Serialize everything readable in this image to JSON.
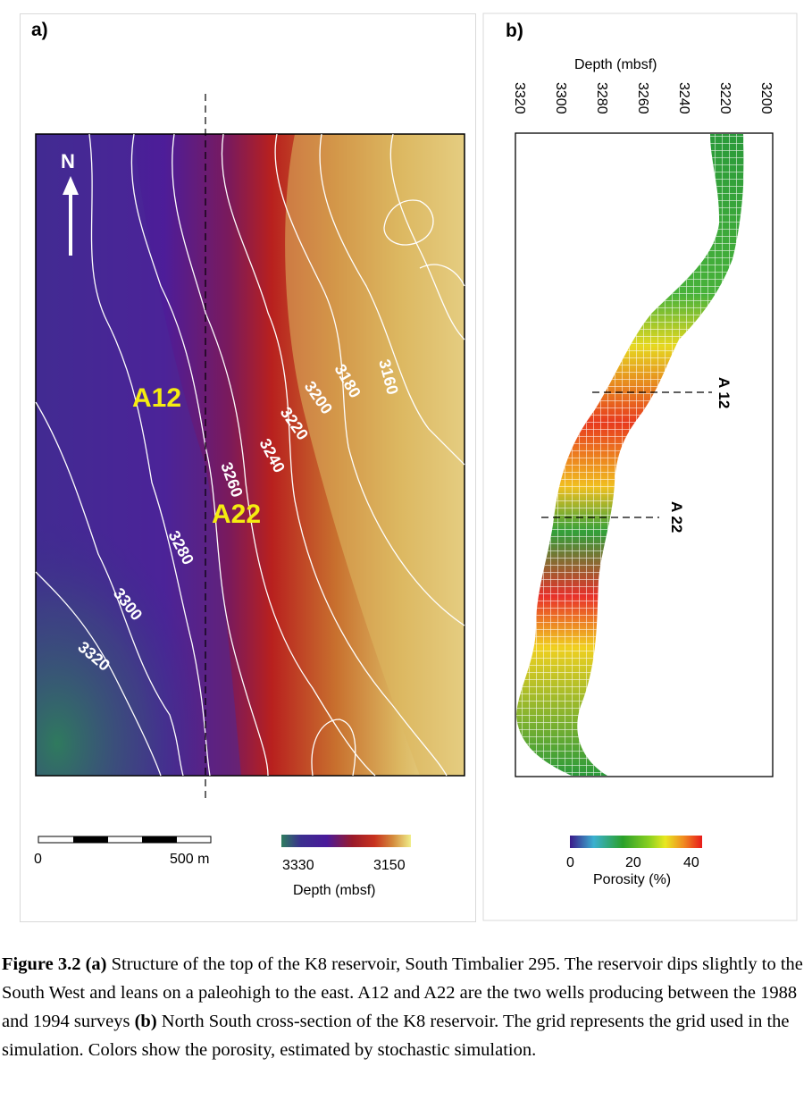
{
  "panel_a": {
    "label": "a)",
    "north": "N",
    "wells": [
      "A12",
      "A22"
    ],
    "contours": [
      "3320",
      "3300",
      "3280",
      "3260",
      "3240",
      "3220",
      "3200",
      "3180",
      "3160"
    ],
    "scale_start": "0",
    "scale_end": "500 m",
    "colorbar_min": "3330",
    "colorbar_max": "3150",
    "colorbar_title": "Depth (mbsf)",
    "colorbar_colors": [
      "#2e7d5f",
      "#3b2f8f",
      "#4a1a9a",
      "#9a1a2a",
      "#c8321e",
      "#d48a3c",
      "#f0e88a"
    ]
  },
  "panel_b": {
    "label": "b)",
    "axis_title": "Depth (mbsf)",
    "ticks": [
      "3320",
      "3300",
      "3280",
      "3260",
      "3240",
      "3220",
      "3200"
    ],
    "well_A12": "A 12",
    "well_A22": "A 22",
    "colorbar_ticks": [
      "0",
      "20",
      "40"
    ],
    "colorbar_title": "Porosity (%)",
    "colorbar_colors": [
      "#3a1a8a",
      "#3bb0d0",
      "#2aa02a",
      "#8ad020",
      "#e8e820",
      "#f08a20",
      "#e81a1a"
    ]
  },
  "caption": {
    "fig_label": "Figure 3.2",
    "part_a": "(a)",
    "text_a": " Structure of the top of the K8 reservoir, South Timbalier 295. The reservoir dips slightly to the South West and leans on a paleohigh to the east. A12 and A22 are the two wells producing between the 1988 and 1994 surveys ",
    "part_b": "(b)",
    "text_b": " North South cross-section of the K8 reservoir. The grid represents the grid used in the simulation. Colors show the porosity, estimated by stochastic simulation."
  }
}
